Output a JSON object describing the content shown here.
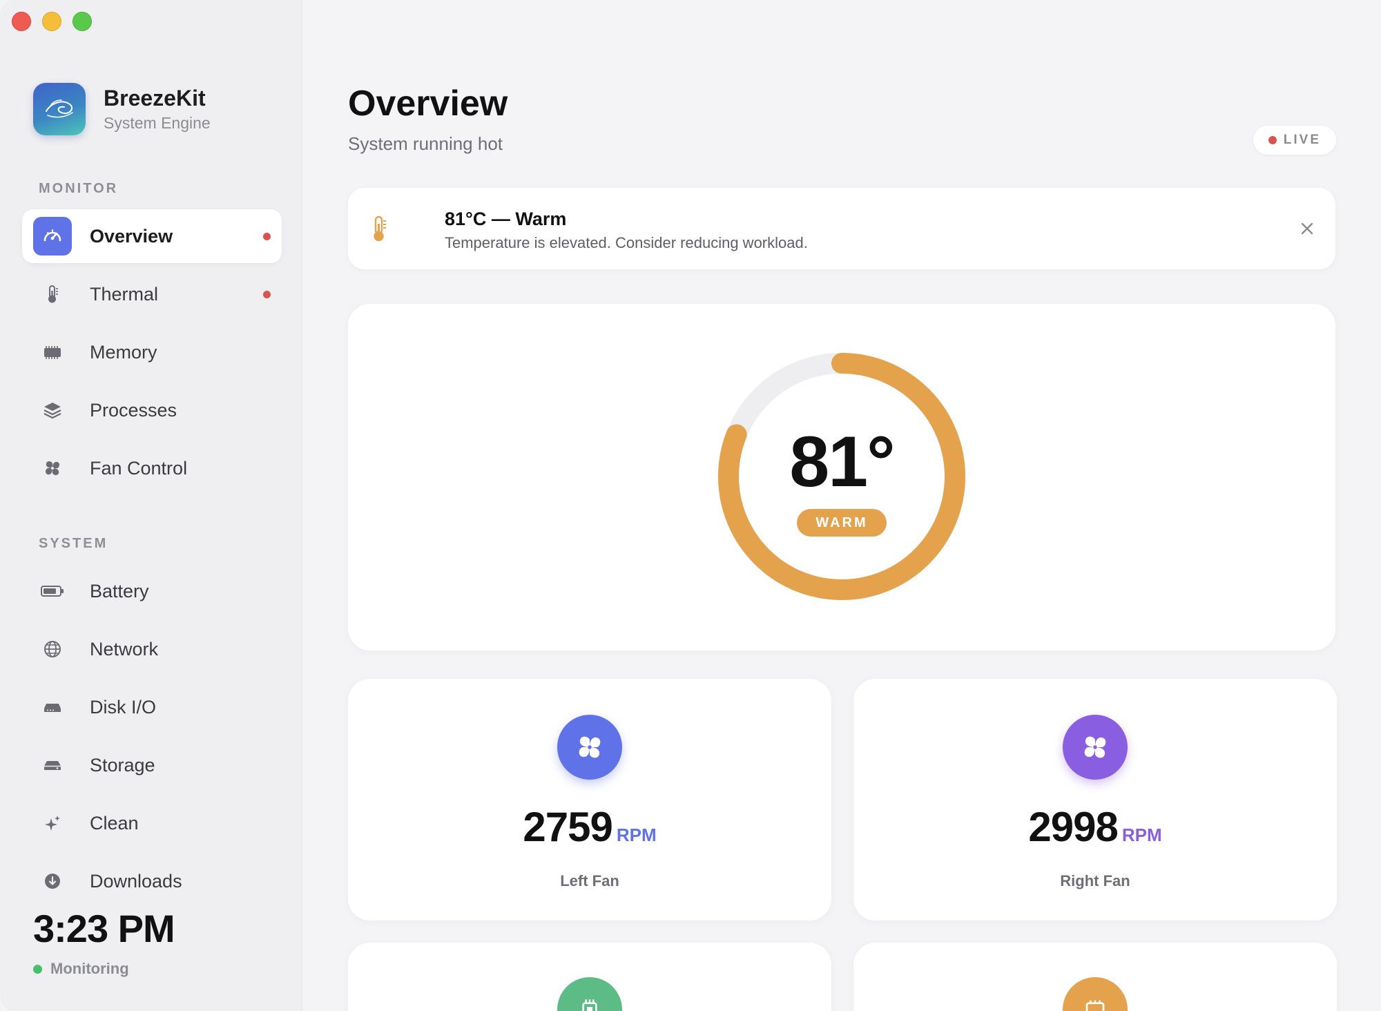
{
  "app": {
    "name": "BreezeKit",
    "subtitle": "System Engine"
  },
  "sidebar": {
    "sections": [
      {
        "label": "MONITOR",
        "items": [
          {
            "label": "Overview",
            "icon": "gauge-icon",
            "active": true,
            "alert": true
          },
          {
            "label": "Thermal",
            "icon": "thermometer-icon",
            "active": false,
            "alert": true
          },
          {
            "label": "Memory",
            "icon": "memory-chip-icon",
            "active": false,
            "alert": false
          },
          {
            "label": "Processes",
            "icon": "layers-icon",
            "active": false,
            "alert": false
          },
          {
            "label": "Fan Control",
            "icon": "fan-icon",
            "active": false,
            "alert": false
          }
        ]
      },
      {
        "label": "SYSTEM",
        "items": [
          {
            "label": "Battery",
            "icon": "battery-icon"
          },
          {
            "label": "Network",
            "icon": "globe-icon"
          },
          {
            "label": "Disk I/O",
            "icon": "drive-icon"
          },
          {
            "label": "Storage",
            "icon": "storage-icon"
          },
          {
            "label": "Clean",
            "icon": "sparkle-icon"
          },
          {
            "label": "Downloads",
            "icon": "download-icon"
          }
        ]
      }
    ],
    "clock": "3:23 PM",
    "status": "Monitoring"
  },
  "header": {
    "title": "Overview",
    "subtitle": "System running hot",
    "live_label": "LIVE"
  },
  "alert": {
    "title": "81°C — Warm",
    "message": "Temperature is elevated. Consider reducing workload."
  },
  "gauge": {
    "value": "81°",
    "status": "WARM",
    "fill_fraction": 0.81
  },
  "fans": [
    {
      "value": "2759",
      "unit": "RPM",
      "label": "Left Fan"
    },
    {
      "value": "2998",
      "unit": "RPM",
      "label": "Right Fan"
    }
  ],
  "colors": {
    "accent": "#5f72e8",
    "warm": "#e4a24d",
    "alert_dot": "#d9534f",
    "ok": "#47c06a",
    "fan_left": "#5f72e8",
    "fan_right": "#8a5ee0",
    "cpu": "#5dbb86",
    "calendar": "#e4a24d"
  }
}
